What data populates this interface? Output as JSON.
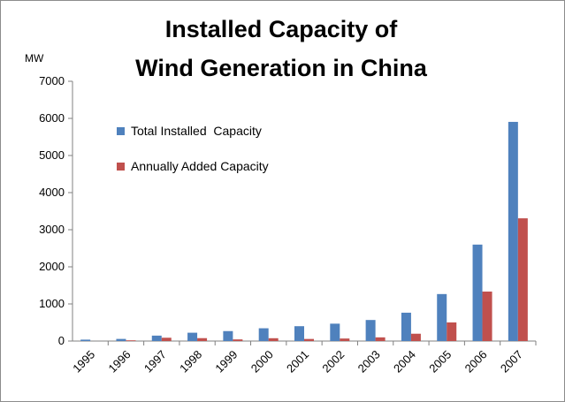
{
  "chart_data": {
    "type": "bar",
    "title_lines": [
      "Installed Capacity of",
      "Wind Generation in China"
    ],
    "ylabel": "MW",
    "xlabel": "",
    "ylim": [
      0,
      7000
    ],
    "yticks": [
      "0",
      "1000",
      "2000",
      "3000",
      "4000",
      "5000",
      "6000",
      "7000"
    ],
    "categories": [
      "1995",
      "1996",
      "1997",
      "1998",
      "1999",
      "2000",
      "2001",
      "2002",
      "2003",
      "2004",
      "2005",
      "2006",
      "2007"
    ],
    "series": [
      {
        "name": "Total Installed  Capacity",
        "color": "#4f81bd",
        "values": [
          38,
          57,
          146,
          224,
          268,
          344,
          400,
          468,
          567,
          764,
          1266,
          2599,
          5906
        ]
      },
      {
        "name": "Annually Added Capacity",
        "color": "#c0504d",
        "values": [
          0,
          19,
          89,
          78,
          44,
          76,
          56,
          68,
          99,
          197,
          502,
          1333,
          3307
        ]
      }
    ],
    "grid": false,
    "legend_position": "top-left"
  }
}
